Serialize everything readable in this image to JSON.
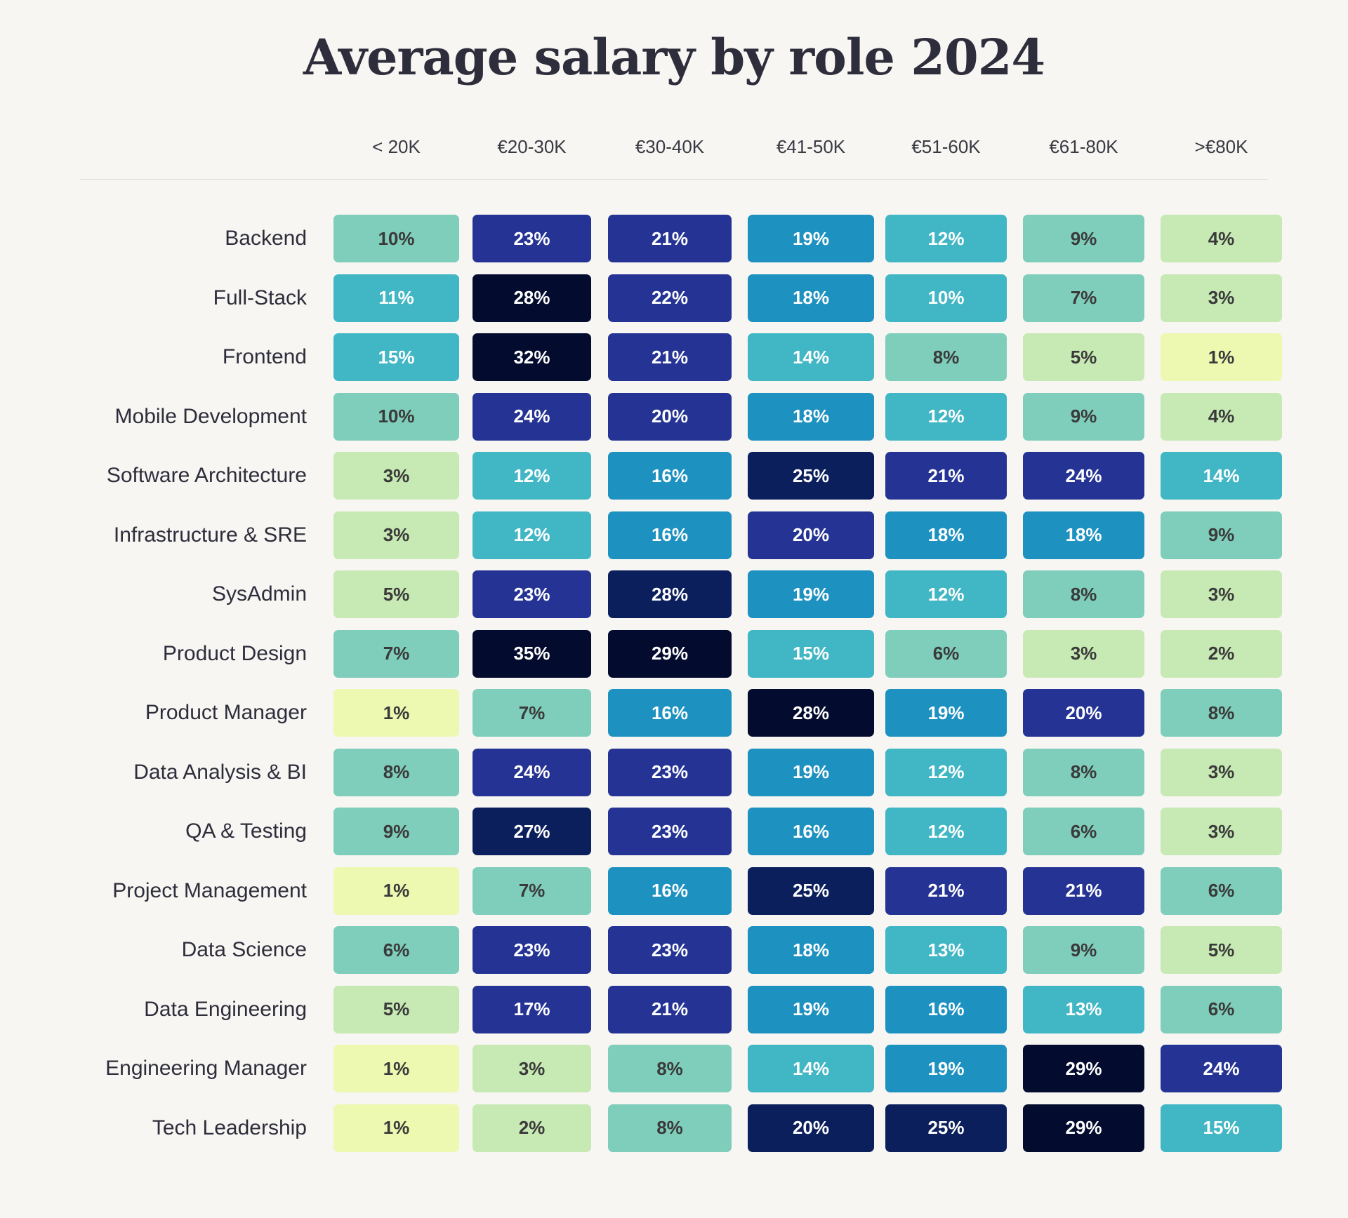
{
  "chart_data": {
    "type": "heatmap",
    "title": "Average salary by role 2024",
    "columns": [
      "< 20K",
      "€20-30K",
      "€30-40K",
      "€41-50K",
      "€51-60K",
      "€61-80K",
      ">€80K"
    ],
    "rows": [
      "Backend",
      "Full-Stack",
      "Frontend",
      "Mobile Development",
      "Software Architecture",
      "Infrastructure & SRE",
      "SysAdmin",
      "Product Design",
      "Product Manager",
      "Data Analysis & BI",
      "QA & Testing",
      "Project Management",
      "Data Science",
      "Data Engineering",
      "Engineering Manager",
      "Tech Leadership"
    ],
    "values": [
      [
        10,
        23,
        21,
        19,
        12,
        9,
        4
      ],
      [
        11,
        28,
        22,
        18,
        10,
        7,
        3
      ],
      [
        15,
        32,
        21,
        14,
        8,
        5,
        1
      ],
      [
        10,
        24,
        20,
        18,
        12,
        9,
        4
      ],
      [
        3,
        12,
        16,
        25,
        21,
        24,
        14
      ],
      [
        3,
        12,
        16,
        20,
        18,
        18,
        9
      ],
      [
        5,
        23,
        28,
        19,
        12,
        8,
        3
      ],
      [
        7,
        35,
        29,
        15,
        6,
        3,
        2
      ],
      [
        1,
        7,
        16,
        28,
        19,
        20,
        8
      ],
      [
        8,
        24,
        23,
        19,
        12,
        8,
        3
      ],
      [
        9,
        27,
        23,
        16,
        12,
        6,
        3
      ],
      [
        1,
        7,
        16,
        25,
        21,
        21,
        6
      ],
      [
        6,
        23,
        23,
        18,
        13,
        9,
        5
      ],
      [
        5,
        17,
        21,
        19,
        16,
        13,
        6
      ],
      [
        1,
        3,
        8,
        14,
        19,
        29,
        24
      ],
      [
        1,
        2,
        8,
        20,
        25,
        29,
        15
      ]
    ],
    "unit": "%",
    "color_levels": [
      [
        2,
        5,
        5,
        4,
        3,
        2,
        1
      ],
      [
        3,
        7,
        5,
        4,
        3,
        2,
        1
      ],
      [
        3,
        7,
        5,
        3,
        2,
        1,
        0
      ],
      [
        2,
        5,
        5,
        4,
        3,
        2,
        1
      ],
      [
        1,
        3,
        4,
        6,
        5,
        5,
        3
      ],
      [
        1,
        3,
        4,
        5,
        4,
        4,
        2
      ],
      [
        1,
        5,
        6,
        4,
        3,
        2,
        1
      ],
      [
        2,
        7,
        7,
        3,
        2,
        1,
        1
      ],
      [
        0,
        2,
        4,
        7,
        4,
        5,
        2
      ],
      [
        2,
        5,
        5,
        4,
        3,
        2,
        1
      ],
      [
        2,
        6,
        5,
        4,
        3,
        2,
        1
      ],
      [
        0,
        2,
        4,
        6,
        5,
        5,
        2
      ],
      [
        2,
        5,
        5,
        4,
        3,
        2,
        1
      ],
      [
        1,
        5,
        5,
        4,
        4,
        3,
        2
      ],
      [
        0,
        1,
        2,
        3,
        4,
        7,
        5
      ],
      [
        0,
        1,
        2,
        6,
        6,
        7,
        3
      ]
    ],
    "palette": [
      "#edf8b1",
      "#c7e9b4",
      "#7fcdbb",
      "#41b6c4",
      "#1d91c0",
      "#253494",
      "#0b1f5c",
      "#030c2e"
    ],
    "text_colors": {
      "light": "#3a3a3a",
      "dark": "#ffffff"
    }
  }
}
